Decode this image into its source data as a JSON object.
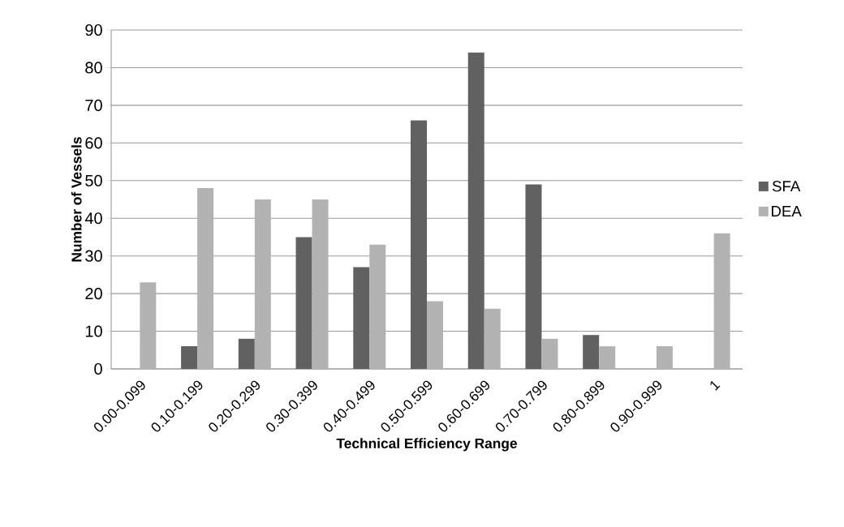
{
  "chart_data": {
    "type": "bar",
    "xlabel": "Technical Efficiency Range",
    "ylabel": "Number of Vessels",
    "categories": [
      "0.00-0.099",
      "0.10-0.199",
      "0.20-0.299",
      "0.30-0.399",
      "0.40-0.499",
      "0.50-0.599",
      "0.60-0.699",
      "0.70-0.799",
      "0.80-0.899",
      "0.90-0.999",
      "1"
    ],
    "series": [
      {
        "name": "SFA",
        "color": "#616161",
        "values": [
          0,
          6,
          8,
          35,
          27,
          66,
          84,
          49,
          9,
          0,
          0
        ]
      },
      {
        "name": "DEA",
        "color": "#b2b2b2",
        "values": [
          23,
          48,
          45,
          45,
          33,
          18,
          16,
          8,
          6,
          6,
          36
        ]
      }
    ],
    "ylim": [
      0,
      90
    ],
    "yticks": [
      0,
      10,
      20,
      30,
      40,
      50,
      60,
      70,
      80,
      90
    ],
    "grid": "y",
    "legend": "right"
  }
}
